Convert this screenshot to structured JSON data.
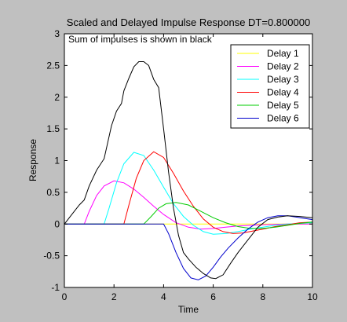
{
  "chart_data": {
    "type": "line",
    "title": "Scaled and Delayed Impulse Response DT=0.800000",
    "annotation": "Sum of impulses is shown in black",
    "xlabel": "Time",
    "ylabel": "Response",
    "xlim": [
      0,
      10
    ],
    "ylim": [
      -1,
      3
    ],
    "xticks": [
      "0",
      "2",
      "4",
      "6",
      "8",
      "10"
    ],
    "yticks": [
      "-1",
      "-0.5",
      "0",
      "0.5",
      "1",
      "1.5",
      "2",
      "2.5",
      "3"
    ],
    "grid": false,
    "legend_position": "top-right",
    "series": [
      {
        "name": "Delay 1",
        "color": "#ffff00",
        "x": [
          0,
          0.5,
          1.0,
          1.5,
          2.0,
          2.5,
          3.0,
          3.5,
          4.0,
          4.5,
          5.0,
          5.5,
          6.0,
          6.5,
          7.0,
          8.0,
          9.0,
          10.0
        ],
        "y": [
          0,
          0,
          0,
          0,
          0,
          0,
          0,
          0,
          0,
          0,
          0,
          0,
          0,
          0,
          0,
          0,
          0,
          0
        ]
      },
      {
        "name": "Delay 2",
        "color": "#ff00ff",
        "x": [
          0,
          0.8,
          1.0,
          1.3,
          1.6,
          2.0,
          2.4,
          2.8,
          3.2,
          3.6,
          4.0,
          4.5,
          5.0,
          5.5,
          6.0,
          6.5,
          7.0,
          7.5,
          8.0,
          9.0,
          10.0
        ],
        "y": [
          0,
          0,
          0.2,
          0.45,
          0.6,
          0.68,
          0.65,
          0.55,
          0.42,
          0.28,
          0.15,
          0.02,
          -0.05,
          -0.08,
          -0.07,
          -0.05,
          -0.03,
          -0.02,
          -0.01,
          0.0,
          0.0
        ]
      },
      {
        "name": "Delay 3",
        "color": "#00ffff",
        "x": [
          0,
          1.6,
          1.8,
          2.1,
          2.4,
          2.8,
          3.2,
          3.6,
          4.0,
          4.4,
          4.8,
          5.2,
          5.6,
          6.0,
          6.5,
          7.0,
          7.5,
          8.0,
          8.5,
          9.0,
          10.0
        ],
        "y": [
          0,
          0,
          0.25,
          0.65,
          0.95,
          1.13,
          1.08,
          0.85,
          0.58,
          0.32,
          0.12,
          -0.02,
          -0.12,
          -0.16,
          -0.15,
          -0.12,
          -0.08,
          -0.05,
          -0.02,
          0.0,
          0.02
        ]
      },
      {
        "name": "Delay 4",
        "color": "#ff0000",
        "x": [
          0,
          2.4,
          2.6,
          2.9,
          3.2,
          3.6,
          4.0,
          4.4,
          4.8,
          5.2,
          5.6,
          6.0,
          6.4,
          6.8,
          7.2,
          7.6,
          8.0,
          8.5,
          9.0,
          9.5,
          10.0
        ],
        "y": [
          0,
          0,
          0.3,
          0.72,
          1.0,
          1.14,
          1.05,
          0.8,
          0.52,
          0.28,
          0.08,
          -0.05,
          -0.12,
          -0.15,
          -0.14,
          -0.11,
          -0.08,
          -0.04,
          -0.01,
          0.02,
          0.03
        ]
      },
      {
        "name": "Delay 5",
        "color": "#00cc00",
        "x": [
          0,
          3.2,
          3.5,
          3.8,
          4.1,
          4.5,
          5.0,
          5.5,
          6.0,
          6.5,
          7.0,
          7.5,
          8.0,
          8.5,
          9.0,
          9.5,
          10.0
        ],
        "y": [
          0,
          0,
          0.12,
          0.25,
          0.32,
          0.34,
          0.3,
          0.2,
          0.1,
          0.02,
          -0.04,
          -0.07,
          -0.07,
          -0.05,
          -0.02,
          0.01,
          0.03
        ]
      },
      {
        "name": "Delay 6",
        "color": "#0000cc",
        "x": [
          0,
          4.0,
          4.2,
          4.5,
          4.8,
          5.1,
          5.4,
          5.7,
          6.0,
          6.3,
          6.6,
          7.0,
          7.4,
          7.8,
          8.2,
          8.6,
          9.0,
          9.5,
          10.0
        ],
        "y": [
          0,
          0,
          -0.15,
          -0.45,
          -0.7,
          -0.85,
          -0.88,
          -0.82,
          -0.68,
          -0.52,
          -0.38,
          -0.22,
          -0.08,
          0.03,
          0.1,
          0.13,
          0.13,
          0.1,
          0.07
        ]
      },
      {
        "name": "",
        "color": "#000000",
        "x": [
          0,
          0.3,
          0.6,
          0.8,
          1.0,
          1.3,
          1.6,
          1.7,
          1.9,
          2.1,
          2.3,
          2.4,
          2.6,
          2.8,
          3.0,
          3.2,
          3.4,
          3.6,
          3.8,
          4.0,
          4.2,
          4.4,
          4.6,
          4.8,
          5.0,
          5.3,
          5.6,
          5.9,
          6.1,
          6.4,
          6.7,
          7.0,
          7.4,
          7.8,
          8.2,
          8.6,
          9.0,
          9.5,
          10.0
        ],
        "y": [
          0,
          0.15,
          0.3,
          0.38,
          0.6,
          0.85,
          1.03,
          1.2,
          1.55,
          1.78,
          1.9,
          2.1,
          2.3,
          2.48,
          2.56,
          2.56,
          2.5,
          2.28,
          2.15,
          1.5,
          0.82,
          0.25,
          -0.18,
          -0.45,
          -0.55,
          -0.68,
          -0.78,
          -0.85,
          -0.86,
          -0.8,
          -0.62,
          -0.45,
          -0.25,
          -0.05,
          0.07,
          0.11,
          0.13,
          0.12,
          0.1
        ]
      }
    ]
  }
}
